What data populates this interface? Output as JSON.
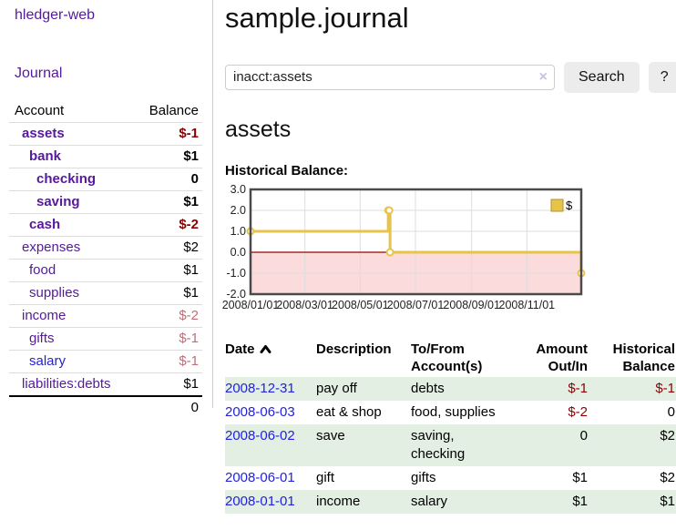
{
  "app": {
    "title": "hledger-web"
  },
  "sidebar": {
    "nav_journal": "Journal",
    "accounts": {
      "header_account": "Account",
      "header_balance": "Balance",
      "rows": [
        {
          "name": "assets",
          "indent": 1,
          "balance": "$-1",
          "bold": true,
          "balance_color": "#8b0000"
        },
        {
          "name": "bank",
          "indent": 2,
          "balance": "$1",
          "bold": true,
          "balance_color": "#000000"
        },
        {
          "name": "checking",
          "indent": 3,
          "balance": "0",
          "bold": true,
          "balance_color": "#000000"
        },
        {
          "name": "saving",
          "indent": 3,
          "balance": "$1",
          "bold": true,
          "balance_color": "#000000"
        },
        {
          "name": "cash",
          "indent": 2,
          "balance": "$-2",
          "bold": true,
          "balance_color": "#8b0000"
        },
        {
          "name": "expenses",
          "indent": 1,
          "balance": "$2",
          "bold": false,
          "balance_color": "#000000"
        },
        {
          "name": "food",
          "indent": 2,
          "balance": "$1",
          "bold": false,
          "balance_color": "#000000"
        },
        {
          "name": "supplies",
          "indent": 2,
          "balance": "$1",
          "bold": false,
          "balance_color": "#000000"
        },
        {
          "name": "income",
          "indent": 1,
          "balance": "$-2",
          "bold": false,
          "balance_color": "#bb7077"
        },
        {
          "name": "gifts",
          "indent": 2,
          "balance": "$-1",
          "bold": false,
          "balance_color": "#bb7077"
        },
        {
          "name": "salary",
          "indent": 2,
          "balance": "$-1",
          "bold": false,
          "balance_color": "#bb7077",
          "name_color": "#2222dd"
        },
        {
          "name": "liabilities:debts",
          "indent": 1,
          "balance": "$1",
          "bold": false,
          "balance_color": "#000000"
        }
      ],
      "total": "0"
    }
  },
  "main": {
    "title": "sample.journal",
    "search": {
      "value": "inacct:assets",
      "clear_label": "×",
      "button": "Search",
      "help": "?"
    },
    "account_heading": "assets",
    "chart_heading": "Historical Balance:"
  },
  "chart_data": {
    "type": "line",
    "step": true,
    "title": "Historical Balance",
    "series": [
      {
        "name": "$",
        "color": "#e8c34a",
        "x": [
          "2008-01-01",
          "2008-06-01",
          "2008-06-02",
          "2008-06-03",
          "2008-12-31"
        ],
        "values": [
          1,
          2,
          2,
          0,
          -1
        ]
      }
    ],
    "xlim": [
      "2008-01-01",
      "2008-12-31"
    ],
    "ylim": [
      -2,
      3
    ],
    "y_ticks": [
      -2,
      -1,
      0,
      1,
      2,
      3
    ],
    "x_ticks": [
      {
        "date": "2008-01-01",
        "label": "2008/01/01"
      },
      {
        "date": "2008-03-01",
        "label": "2008/03/01"
      },
      {
        "date": "2008-05-01",
        "label": "2008/05/01"
      },
      {
        "date": "2008-07-01",
        "label": "2008/07/01"
      },
      {
        "date": "2008-09-01",
        "label": "2008/09/01"
      },
      {
        "date": "2008-11-01",
        "label": "2008/11/01"
      }
    ],
    "legend": {
      "label": "$",
      "position": "top-right"
    },
    "grid": true,
    "colors": {
      "negative_region": "#fbdbdb",
      "zero_line": "#990000",
      "grid_line": "#dddddd",
      "border": "#4a4a4a",
      "marker_fill": "#ffffff",
      "legend_border": "#b8922a"
    }
  },
  "register": {
    "headers": {
      "date": "Date",
      "description": "Description",
      "accounts": "To/From Account(s)",
      "amount": "Amount Out/In",
      "balance": "Historical Balance"
    },
    "rows": [
      {
        "date": "2008-12-31",
        "description": "pay off",
        "accounts": "debts",
        "amount": "$-1",
        "balance": "$-1"
      },
      {
        "date": "2008-06-03",
        "description": "eat & shop",
        "accounts": "food, supplies",
        "amount": "$-2",
        "balance": "0"
      },
      {
        "date": "2008-06-02",
        "description": "save",
        "accounts": "saving, checking",
        "amount": "0",
        "balance": "$2"
      },
      {
        "date": "2008-06-01",
        "description": "gift",
        "accounts": "gifts",
        "amount": "$1",
        "balance": "$2"
      },
      {
        "date": "2008-01-01",
        "description": "income",
        "accounts": "salary",
        "amount": "$1",
        "balance": "$1"
      }
    ]
  }
}
